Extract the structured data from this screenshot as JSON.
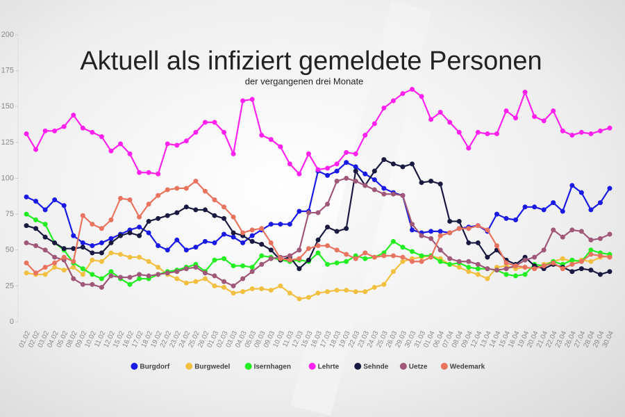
{
  "chart_data": {
    "type": "line",
    "title": "Aktuell als infiziert gemeldete Personen",
    "subtitle": "der vergangenen drei Monate",
    "categories": [
      "01.02",
      "02.02",
      "03.02",
      "04.02",
      "05.02",
      "08.02",
      "09.02",
      "10.02",
      "11.02",
      "12.02",
      "15.02",
      "16.02",
      "17.02",
      "18.02",
      "19.02",
      "22.02",
      "23.02",
      "24.02",
      "25.02",
      "26.02",
      "01.03",
      "02.03",
      "03.03",
      "04.03",
      "05.03",
      "08.03",
      "09.03",
      "10.03",
      "11.03",
      "12.03",
      "15.03",
      "16.03",
      "17.03",
      "18.03",
      "19.03",
      "22.03",
      "23.03",
      "24.03",
      "25.03",
      "26.03",
      "29.03",
      "30.03",
      "31.03",
      "01.04",
      "06.04",
      "07.04",
      "08.04",
      "09.04",
      "12.04",
      "13.04",
      "14.04",
      "15.04",
      "16.04",
      "19.04",
      "20.04",
      "21.04",
      "22.04",
      "23.04",
      "26.04",
      "27.04",
      "28.04",
      "29.04",
      "30.04"
    ],
    "ylim": [
      0,
      200
    ],
    "yticks": [
      0,
      25,
      50,
      75,
      100,
      125,
      150,
      175,
      200
    ],
    "series": [
      {
        "name": "Burgdorf",
        "color": "#1a1ae6",
        "values": [
          87,
          84,
          78,
          85,
          81,
          60,
          55,
          53,
          55,
          58,
          61,
          64,
          66,
          62,
          53,
          50,
          57,
          50,
          52,
          56,
          55,
          61,
          59,
          55,
          60,
          64,
          68,
          68,
          68,
          77,
          77,
          105,
          102,
          105,
          111,
          108,
          103,
          99,
          93,
          90,
          88,
          64,
          62,
          63,
          63,
          62,
          65,
          66,
          67,
          63,
          75,
          72,
          71,
          80,
          80,
          78,
          83,
          77,
          95,
          90,
          78,
          83,
          93
        ]
      },
      {
        "name": "Burgwedel",
        "color": "#f2c040",
        "values": [
          34,
          33,
          33,
          38,
          36,
          38,
          33,
          43,
          42,
          48,
          47,
          45,
          45,
          42,
          38,
          33,
          30,
          27,
          28,
          30,
          25,
          24,
          20,
          21,
          23,
          23,
          22,
          25,
          20,
          16,
          17,
          20,
          21,
          22,
          22,
          21,
          21,
          24,
          26,
          35,
          42,
          44,
          45,
          46,
          44,
          40,
          38,
          35,
          33,
          30,
          38,
          39,
          37,
          38,
          37,
          40,
          42,
          44,
          42,
          43,
          42,
          45,
          46
        ]
      },
      {
        "name": "Isernhagen",
        "color": "#22ee22",
        "values": [
          75,
          71,
          68,
          55,
          50,
          41,
          37,
          33,
          30,
          35,
          30,
          26,
          30,
          30,
          33,
          35,
          36,
          38,
          40,
          35,
          43,
          44,
          39,
          39,
          38,
          46,
          45,
          43,
          42,
          43,
          42,
          48,
          40,
          41,
          42,
          46,
          44,
          45,
          48,
          56,
          52,
          49,
          46,
          46,
          42,
          40,
          41,
          38,
          37,
          37,
          36,
          33,
          32,
          33,
          40,
          39,
          42,
          40,
          43,
          42,
          50,
          48,
          47
        ]
      },
      {
        "name": "Lehrte",
        "color": "#ff22ee",
        "values": [
          131,
          120,
          133,
          133,
          136,
          144,
          135,
          132,
          129,
          119,
          124,
          117,
          104,
          104,
          103,
          124,
          123,
          126,
          132,
          139,
          139,
          132,
          117,
          154,
          155,
          130,
          127,
          122,
          110,
          103,
          117,
          106,
          107,
          110,
          118,
          117,
          130,
          138,
          149,
          154,
          159,
          162,
          157,
          141,
          146,
          139,
          132,
          121,
          132,
          131,
          131,
          147,
          142,
          160,
          143,
          140,
          147,
          133,
          130,
          132,
          131,
          133,
          135
        ]
      },
      {
        "name": "Sehnde",
        "color": "#1a1a40",
        "values": [
          67,
          65,
          59,
          55,
          51,
          51,
          52,
          48,
          48,
          55,
          60,
          62,
          60,
          70,
          72,
          74,
          76,
          80,
          78,
          78,
          74,
          72,
          62,
          60,
          56,
          54,
          50,
          43,
          45,
          37,
          43,
          57,
          66,
          63,
          65,
          105,
          95,
          105,
          113,
          110,
          108,
          110,
          97,
          98,
          96,
          70,
          70,
          55,
          55,
          45,
          50,
          43,
          40,
          45,
          39,
          37,
          40,
          38,
          35,
          37,
          36,
          33,
          35
        ]
      },
      {
        "name": "Uetze",
        "color": "#a05878",
        "values": [
          55,
          53,
          50,
          45,
          43,
          30,
          26,
          26,
          24,
          32,
          31,
          31,
          33,
          32,
          33,
          34,
          35,
          37,
          38,
          34,
          32,
          28,
          25,
          30,
          35,
          40,
          44,
          45,
          46,
          50,
          76,
          76,
          82,
          98,
          100,
          98,
          95,
          92,
          89,
          89,
          88,
          68,
          60,
          58,
          50,
          44,
          42,
          42,
          40,
          37,
          36,
          37,
          39,
          43,
          45,
          50,
          64,
          59,
          64,
          63,
          57,
          58,
          61
        ]
      },
      {
        "name": "Wedemark",
        "color": "#e8735f",
        "values": [
          41,
          34,
          38,
          41,
          45,
          42,
          74,
          68,
          65,
          71,
          86,
          85,
          73,
          82,
          88,
          92,
          93,
          93,
          98,
          91,
          85,
          80,
          73,
          62,
          64,
          65,
          55,
          44,
          43,
          44,
          51,
          53,
          53,
          50,
          47,
          44,
          48,
          45,
          46,
          46,
          45,
          42,
          42,
          45,
          60,
          62,
          65,
          65,
          67,
          64,
          53,
          41,
          39,
          38,
          37,
          39,
          41,
          37,
          40,
          42,
          47,
          46,
          45
        ]
      }
    ]
  }
}
